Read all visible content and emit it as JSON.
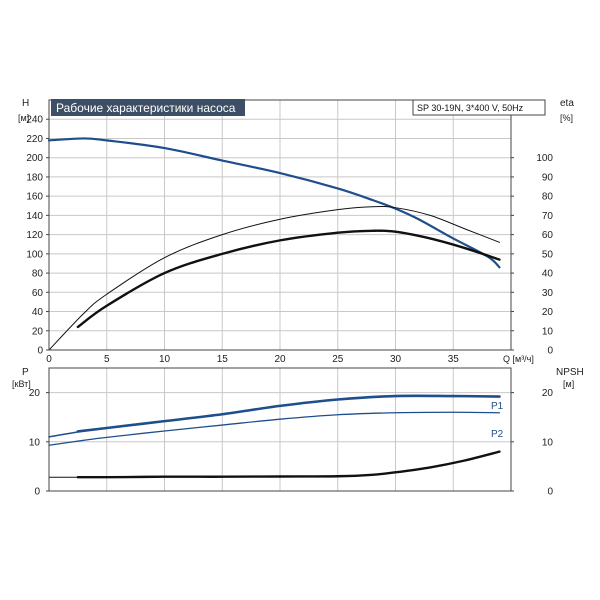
{
  "chart_data": [
    {
      "type": "line",
      "title": "Рабочие характеристики насоса",
      "subtitle": "SP 30-19N, 3*400 V, 50Hz",
      "xlabel": "Q [м³/ч]",
      "ylabel_left": {
        "name": "H",
        "unit": "[м]"
      },
      "ylabel_right": {
        "name": "eta",
        "unit": "[%]"
      },
      "xlim": [
        0,
        40
      ],
      "ylim_left": [
        0,
        260
      ],
      "ylim_right": [
        0,
        130
      ],
      "x_ticks": [
        0,
        5,
        10,
        15,
        20,
        25,
        30,
        35
      ],
      "y_left_ticks": [
        0,
        20,
        40,
        60,
        80,
        100,
        120,
        140,
        160,
        180,
        200,
        220,
        240
      ],
      "y_right_ticks": [
        0,
        10,
        20,
        30,
        40,
        50,
        60,
        70,
        80,
        90,
        100
      ],
      "grid": true,
      "series": [
        {
          "key": "H",
          "axis": "left",
          "color": "#1f4e8c",
          "width": 2.2,
          "x": [
            0,
            3,
            5,
            10,
            15,
            20,
            25,
            28,
            30,
            32,
            35,
            38,
            39
          ],
          "values": [
            218,
            220,
            218,
            210,
            197,
            184,
            168,
            156,
            147,
            136,
            116,
            97,
            86
          ]
        },
        {
          "key": "eta_thin",
          "axis": "right",
          "color": "#111111",
          "width": 1,
          "x": [
            0,
            3,
            5,
            10,
            15,
            20,
            25,
            28,
            30,
            33,
            36,
            39
          ],
          "values": [
            0,
            19,
            29,
            48,
            60,
            68,
            73,
            74.5,
            74,
            70,
            63,
            56
          ]
        },
        {
          "key": "eta_thick",
          "axis": "right",
          "color": "#111111",
          "width": 2.4,
          "x": [
            2.5,
            5,
            10,
            15,
            20,
            25,
            28,
            30,
            33,
            36,
            39
          ],
          "values": [
            12,
            23,
            40,
            50,
            57,
            61,
            62,
            61.5,
            58,
            53,
            47
          ]
        }
      ]
    },
    {
      "type": "line",
      "ylabel_left": {
        "name": "P",
        "unit": "[кВт]"
      },
      "ylabel_right": {
        "name": "NPSH",
        "unit": "[м]"
      },
      "xlim": [
        0,
        40
      ],
      "ylim": [
        0,
        25
      ],
      "y_ticks": [
        0,
        10,
        20
      ],
      "grid": true,
      "series": [
        {
          "name": "P1",
          "color": "#1f4e8c",
          "width": 1.6,
          "x": [
            0,
            3,
            5,
            10,
            15,
            20,
            25,
            30,
            35,
            39
          ],
          "values": [
            11,
            12.2,
            12.8,
            14.2,
            15.6,
            17.3,
            18.6,
            19.3,
            19.3,
            19.2
          ]
        },
        {
          "name": "P1_thick",
          "color": "#1f4e8c",
          "width": 2.6,
          "x": [
            2.5,
            5,
            10,
            15,
            20,
            25,
            30,
            35,
            39
          ],
          "values": [
            12.1,
            12.8,
            14.2,
            15.6,
            17.3,
            18.6,
            19.3,
            19.3,
            19.2
          ]
        },
        {
          "name": "P2",
          "color": "#1f4e8c",
          "width": 1.3,
          "x": [
            0,
            3,
            5,
            10,
            15,
            20,
            25,
            30,
            35,
            39
          ],
          "values": [
            9.3,
            10.3,
            10.9,
            12.2,
            13.4,
            14.6,
            15.5,
            15.9,
            16.0,
            15.9
          ]
        },
        {
          "name": "NPSH_thin",
          "color": "#111111",
          "width": 1,
          "x": [
            0,
            2.5
          ],
          "values": [
            2.8,
            2.8
          ]
        },
        {
          "name": "NPSH",
          "color": "#111111",
          "width": 2.4,
          "x": [
            2.5,
            5,
            10,
            15,
            20,
            25,
            28,
            30,
            33,
            36,
            39
          ],
          "values": [
            2.8,
            2.8,
            2.9,
            2.9,
            2.95,
            3.0,
            3.3,
            3.8,
            4.8,
            6.2,
            8.0
          ]
        }
      ]
    }
  ],
  "labels": {
    "top_left_axis_name": "H",
    "top_left_axis_unit": "[м]",
    "top_right_axis_name": "eta",
    "top_right_axis_unit": "[%]",
    "x_axis_label": "Q [м³/ч]",
    "bottom_left_axis_name": "P",
    "bottom_left_axis_unit": "[кВт]",
    "bottom_right_axis_name": "NPSH",
    "bottom_right_axis_unit": "[м]",
    "p1_label": "P1",
    "p2_label": "P2"
  }
}
